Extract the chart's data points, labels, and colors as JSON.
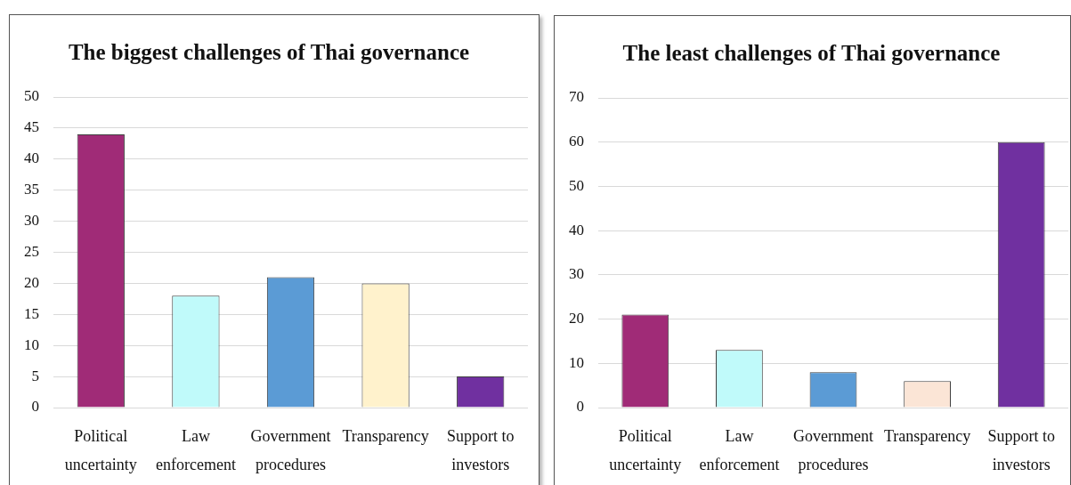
{
  "chart_data": [
    {
      "type": "bar",
      "title": "The biggest challenges of Thai governance",
      "categories": [
        "Political uncertainty",
        "Law enforcement",
        "Government procedures",
        "Transparency",
        "Support to investors"
      ],
      "values": [
        44,
        18,
        21,
        20,
        5
      ],
      "colors": [
        "#a02b77",
        "#c0fafa",
        "#5b9bd5",
        "#fff2cc",
        "#7030a0"
      ],
      "ylim": [
        0,
        50
      ],
      "yticks": [
        0,
        5,
        10,
        15,
        20,
        25,
        30,
        35,
        40,
        45,
        50
      ],
      "grid": "y"
    },
    {
      "type": "bar",
      "title": "The least challenges of Thai governance",
      "categories": [
        "Political uncertainty",
        "Law enforcement",
        "Government procedures",
        "Transparency",
        "Support to investors"
      ],
      "values": [
        21,
        13,
        8,
        6,
        60
      ],
      "colors": [
        "#a02b77",
        "#c0fafa",
        "#5b9bd5",
        "#fbe5d6",
        "#7030a0"
      ],
      "ylim": [
        0,
        70
      ],
      "yticks": [
        0,
        10,
        20,
        30,
        40,
        50,
        60,
        70
      ],
      "grid": "y"
    }
  ]
}
